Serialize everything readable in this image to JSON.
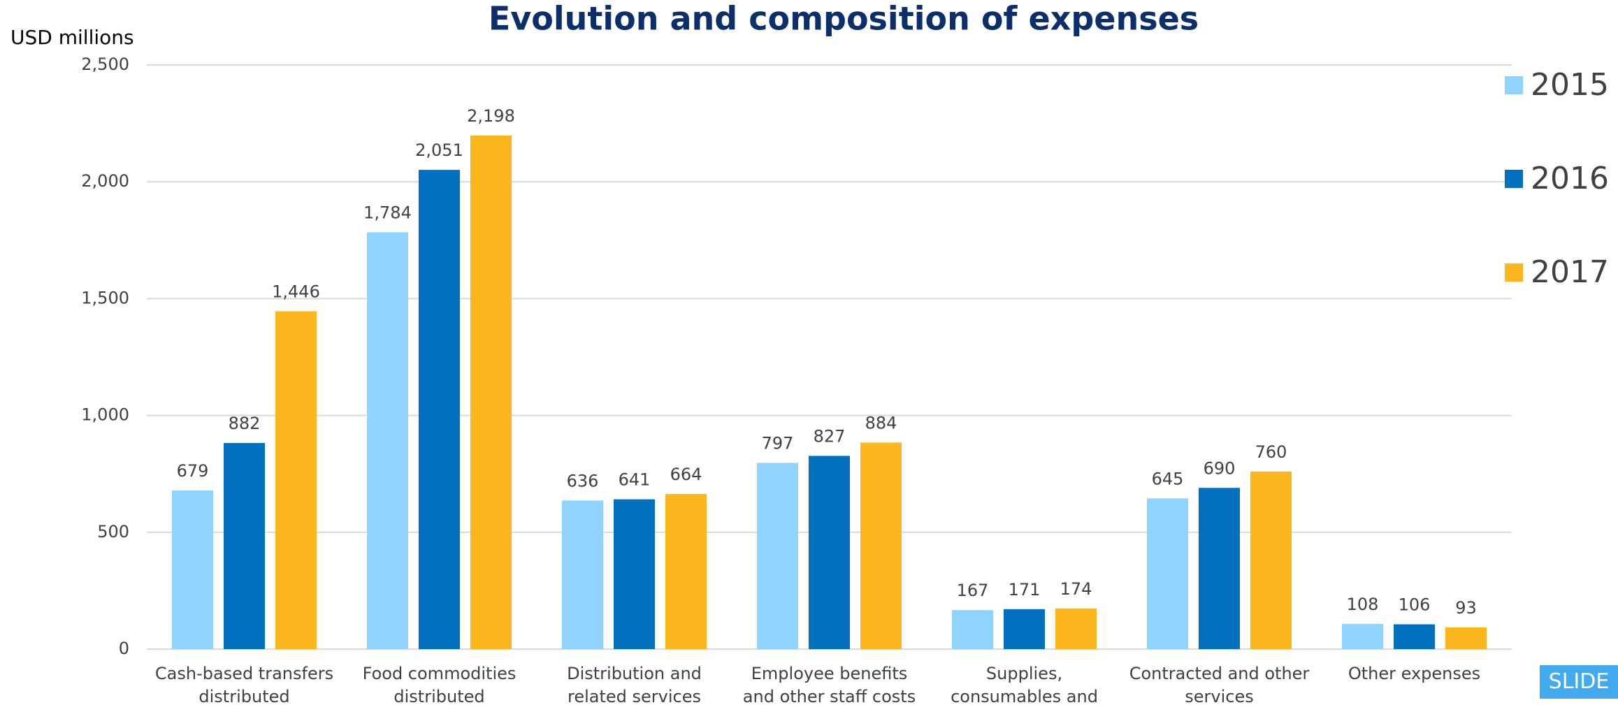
{
  "chart_data": {
    "type": "bar",
    "title": "Evolution and composition of expenses",
    "y_label": "USD millions",
    "categories": [
      "Cash-based transfers distributed",
      "Food commodities distributed",
      "Distribution and related services",
      "Employee benefits and other staff costs",
      "Supplies, consumables and other running costs",
      "Contracted and other services",
      "Other expenses"
    ],
    "series": [
      {
        "name": "2015",
        "color": "#8fd3fe",
        "values": [
          679,
          1784,
          636,
          797,
          167,
          645,
          108
        ],
        "value_labels": [
          "679",
          "1,784",
          "636",
          "797",
          "167",
          "645",
          "108"
        ]
      },
      {
        "name": "2016",
        "color": "#0070bf",
        "values": [
          882,
          2051,
          641,
          827,
          171,
          690,
          106
        ],
        "value_labels": [
          "882",
          "2,051",
          "641",
          "827",
          "171",
          "690",
          "106"
        ]
      },
      {
        "name": "2017",
        "color": "#fdb71e",
        "values": [
          1446,
          2198,
          664,
          884,
          174,
          760,
          93
        ],
        "value_labels": [
          "1,446",
          "2,198",
          "664",
          "884",
          "174",
          "760",
          "93"
        ]
      }
    ],
    "ylim": [
      0,
      2500
    ],
    "yticks": [
      0,
      500,
      {
        "value": 1000,
        "label": "1,000"
      },
      {
        "value": 1500,
        "label": "1,500"
      },
      {
        "value": 2000,
        "label": "2,000"
      },
      {
        "value": 2500,
        "label": "2,500"
      }
    ],
    "grid": true,
    "legend": "right"
  },
  "button": "SLIDE"
}
